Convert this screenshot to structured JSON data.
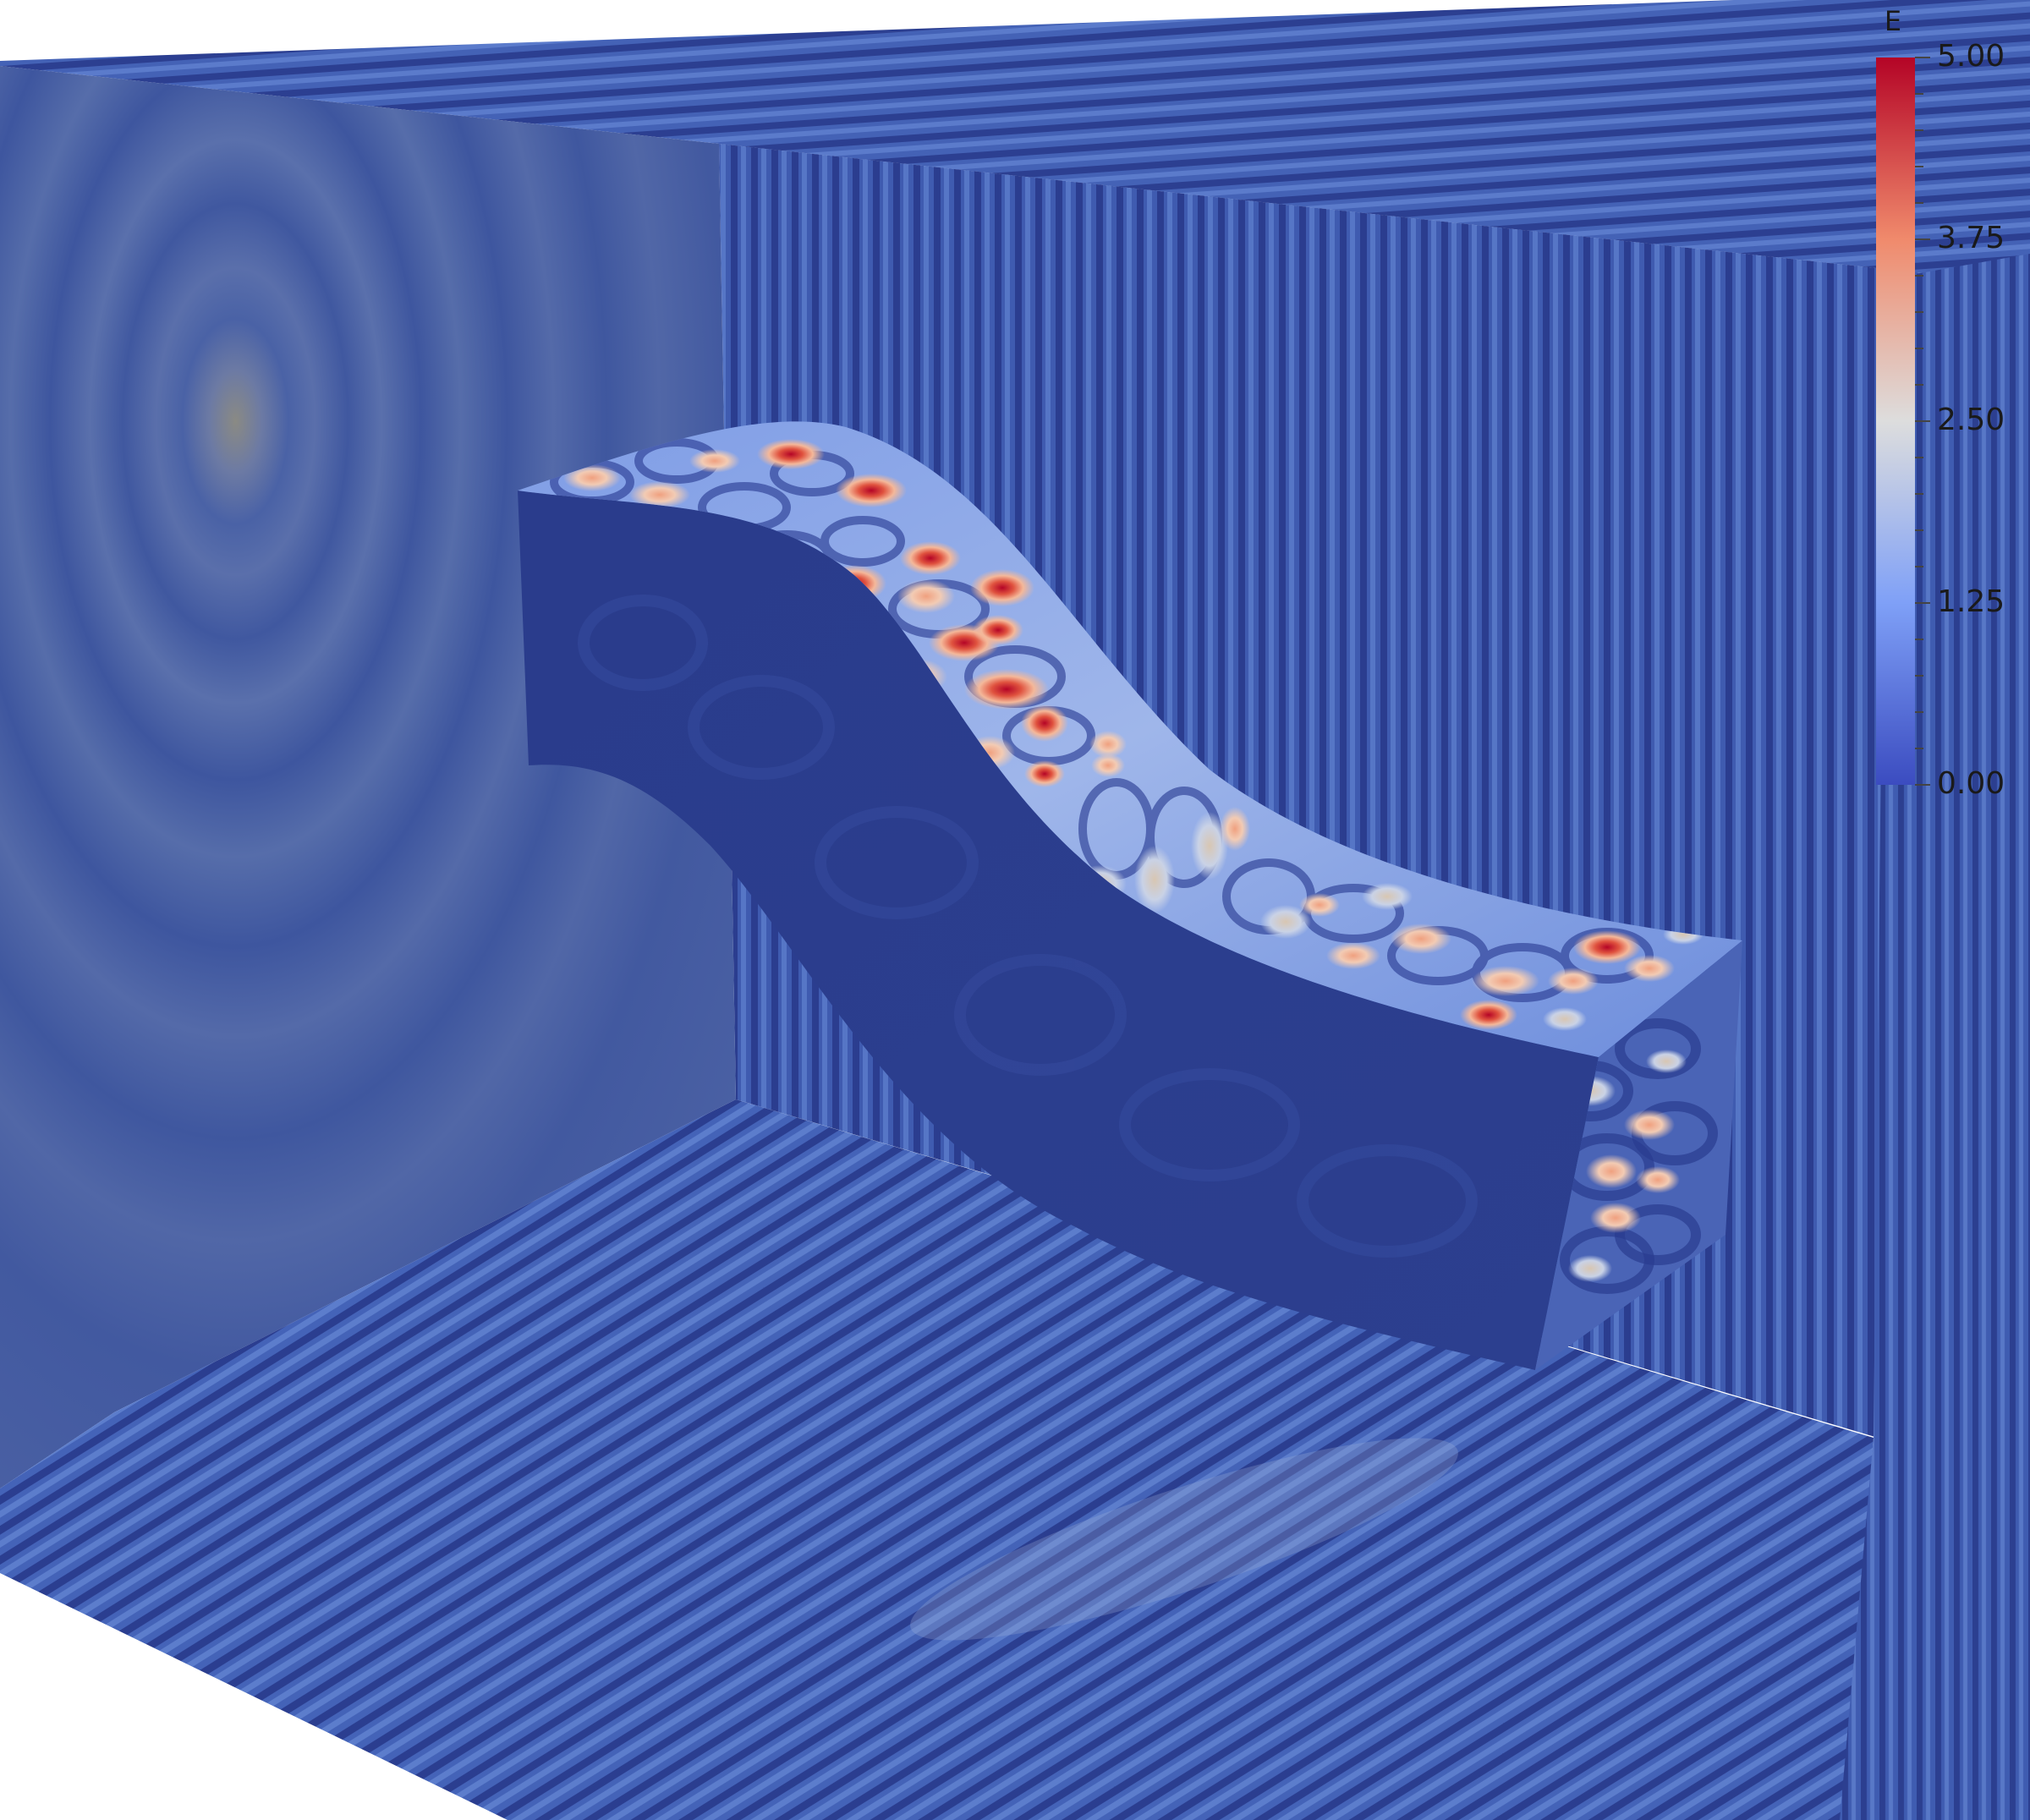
{
  "colorbar": {
    "title": "E",
    "labels": [
      "5.00",
      "3.75",
      "2.50",
      "1.25",
      "0.00"
    ],
    "range": [
      0.0,
      5.0
    ],
    "colormap": [
      "#b40426",
      "#f08a6c",
      "#dddddd",
      "#6f92f3",
      "#3b4cc0"
    ]
  },
  "scene": {
    "background": "#ffffff",
    "field_base_color": "#3d56a6",
    "field_dark_color": "#26367f",
    "field_light_color": "#5a78c8",
    "hot_color": "#c8242a"
  }
}
